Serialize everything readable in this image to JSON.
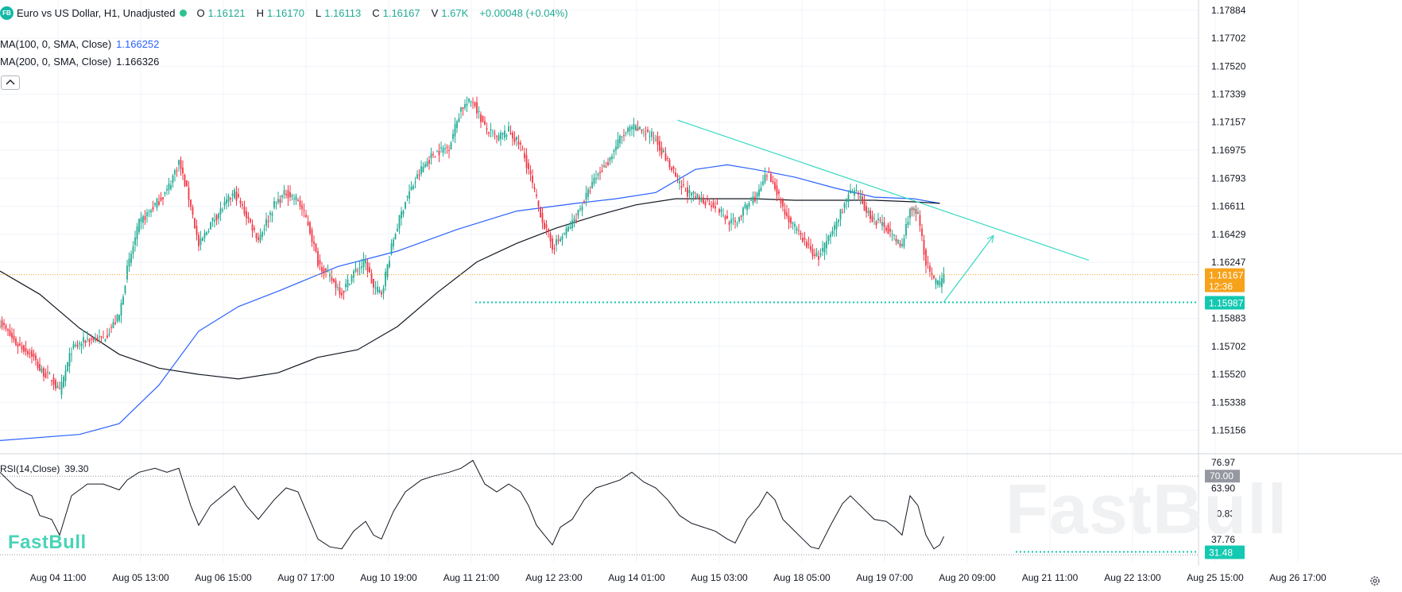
{
  "header": {
    "logo": "FB",
    "symbol_title": "Euro vs US Dollar, H1, Unadjusted",
    "ohlc": [
      {
        "key": "O",
        "value": "1.16121"
      },
      {
        "key": "H",
        "value": "1.16170"
      },
      {
        "key": "L",
        "value": "1.16113"
      },
      {
        "key": "C",
        "value": "1.16167"
      },
      {
        "key": "V",
        "value": "1.67K"
      }
    ],
    "change": "+0.00048 (+0.04%)"
  },
  "indicators": {
    "ma100_label": "MA(100, 0, SMA, Close)",
    "ma100_value": "1.166252",
    "ma200_label": "MA(200, 0, SMA, Close)",
    "ma200_value": "1.166326",
    "collapse_icon": "chevron-up-icon"
  },
  "rsi": {
    "label": "RSI(14,Close)",
    "value": "39.30"
  },
  "branding": {
    "small_logo": "FastBull",
    "watermark": "FastBull"
  },
  "colors": {
    "up": "#22ab94",
    "down": "#f23645",
    "ma100": "#2962ff",
    "ma200": "#131722",
    "trendline": "#36d9c4",
    "price_tag": "#f7a21b",
    "support_tag": "#13c9b1"
  },
  "chart_data": [
    {
      "type": "candlestick",
      "title": "Euro vs US Dollar, H1, Unadjusted",
      "x_tick_labels": [
        "Aug 04 11:00",
        "Aug 05 13:00",
        "Aug 06 15:00",
        "Aug 07 17:00",
        "Aug 10 19:00",
        "Aug 11 21:00",
        "Aug 12 23:00",
        "Aug 14 01:00",
        "Aug 15 03:00",
        "Aug 18 05:00",
        "Aug 19 07:00",
        "Aug 20 09:00",
        "Aug 21 11:00",
        "Aug 22 13:00",
        "Aug 25 15:00",
        "Aug 26 17:00"
      ],
      "y_tick_labels": [
        "1.17884",
        "1.17702",
        "1.17520",
        "1.17339",
        "1.17157",
        "1.16975",
        "1.16793",
        "1.16611",
        "1.16429",
        "1.16247",
        "1.15883",
        "1.15702",
        "1.15520",
        "1.15338",
        "1.15156"
      ],
      "ylim": [
        1.1502,
        1.1795
      ],
      "grid": true,
      "close_path": [
        [
          0,
          1.1586
        ],
        [
          8,
          1.1572
        ],
        [
          16,
          1.1565
        ],
        [
          20,
          1.1555
        ],
        [
          26,
          1.1549
        ],
        [
          30,
          1.154
        ],
        [
          36,
          1.1568
        ],
        [
          44,
          1.1575
        ],
        [
          52,
          1.1575
        ],
        [
          60,
          1.159
        ],
        [
          64,
          1.162
        ],
        [
          70,
          1.165
        ],
        [
          78,
          1.1662
        ],
        [
          84,
          1.1671
        ],
        [
          90,
          1.169
        ],
        [
          96,
          1.1662
        ],
        [
          100,
          1.1635
        ],
        [
          106,
          1.165
        ],
        [
          112,
          1.166
        ],
        [
          118,
          1.167
        ],
        [
          124,
          1.1655
        ],
        [
          130,
          1.164
        ],
        [
          138,
          1.1662
        ],
        [
          144,
          1.167
        ],
        [
          150,
          1.1665
        ],
        [
          155,
          1.165
        ],
        [
          160,
          1.1625
        ],
        [
          166,
          1.1615
        ],
        [
          172,
          1.1605
        ],
        [
          178,
          1.1618
        ],
        [
          184,
          1.1625
        ],
        [
          188,
          1.1608
        ],
        [
          192,
          1.1605
        ],
        [
          198,
          1.164
        ],
        [
          204,
          1.1665
        ],
        [
          212,
          1.1685
        ],
        [
          218,
          1.1695
        ],
        [
          226,
          1.17
        ],
        [
          232,
          1.1725
        ],
        [
          238,
          1.173
        ],
        [
          244,
          1.1712
        ],
        [
          250,
          1.1705
        ],
        [
          256,
          1.171
        ],
        [
          262,
          1.17
        ],
        [
          266,
          1.1685
        ],
        [
          270,
          1.1665
        ],
        [
          274,
          1.1648
        ],
        [
          278,
          1.1635
        ],
        [
          282,
          1.164
        ],
        [
          288,
          1.165
        ],
        [
          294,
          1.1665
        ],
        [
          300,
          1.168
        ],
        [
          306,
          1.169
        ],
        [
          312,
          1.1705
        ],
        [
          318,
          1.1712
        ],
        [
          324,
          1.171
        ],
        [
          330,
          1.1705
        ],
        [
          336,
          1.169
        ],
        [
          342,
          1.1675
        ],
        [
          348,
          1.1668
        ],
        [
          354,
          1.1665
        ],
        [
          360,
          1.1662
        ],
        [
          366,
          1.1652
        ],
        [
          370,
          1.165
        ],
        [
          376,
          1.1662
        ],
        [
          382,
          1.167
        ],
        [
          386,
          1.1682
        ],
        [
          390,
          1.1675
        ],
        [
          394,
          1.166
        ],
        [
          398,
          1.165
        ],
        [
          404,
          1.164
        ],
        [
          408,
          1.1632
        ],
        [
          412,
          1.1628
        ],
        [
          418,
          1.1642
        ],
        [
          424,
          1.166
        ],
        [
          428,
          1.167
        ],
        [
          432,
          1.1668
        ],
        [
          436,
          1.1658
        ],
        [
          440,
          1.1652
        ],
        [
          446,
          1.1648
        ],
        [
          450,
          1.164
        ],
        [
          454,
          1.1635
        ],
        [
          458,
          1.166
        ],
        [
          462,
          1.1655
        ],
        [
          466,
          1.1625
        ],
        [
          470,
          1.1612
        ],
        [
          473,
          1.161
        ],
        [
          475,
          1.1617
        ]
      ],
      "ma100": [
        [
          0,
          1.1509
        ],
        [
          40,
          1.1513
        ],
        [
          60,
          1.152
        ],
        [
          80,
          1.1545
        ],
        [
          100,
          1.158
        ],
        [
          120,
          1.1596
        ],
        [
          140,
          1.1606
        ],
        [
          170,
          1.1622
        ],
        [
          200,
          1.1632
        ],
        [
          230,
          1.1646
        ],
        [
          260,
          1.1658
        ],
        [
          290,
          1.1663
        ],
        [
          310,
          1.1666
        ],
        [
          330,
          1.167
        ],
        [
          350,
          1.1685
        ],
        [
          366,
          1.1688
        ],
        [
          380,
          1.1685
        ],
        [
          400,
          1.168
        ],
        [
          420,
          1.1673
        ],
        [
          440,
          1.1667
        ],
        [
          460,
          1.1666
        ],
        [
          473,
          1.1663
        ]
      ],
      "ma200": [
        [
          0,
          1.1619
        ],
        [
          20,
          1.1604
        ],
        [
          40,
          1.1582
        ],
        [
          60,
          1.1565
        ],
        [
          80,
          1.1556
        ],
        [
          100,
          1.1552
        ],
        [
          120,
          1.1549
        ],
        [
          140,
          1.1553
        ],
        [
          160,
          1.1563
        ],
        [
          180,
          1.1568
        ],
        [
          200,
          1.1583
        ],
        [
          220,
          1.1605
        ],
        [
          240,
          1.1625
        ],
        [
          260,
          1.1637
        ],
        [
          280,
          1.1647
        ],
        [
          300,
          1.1655
        ],
        [
          320,
          1.1662
        ],
        [
          340,
          1.1666
        ],
        [
          360,
          1.1666
        ],
        [
          380,
          1.1666
        ],
        [
          400,
          1.1665
        ],
        [
          420,
          1.1665
        ],
        [
          440,
          1.1665
        ],
        [
          460,
          1.1664
        ],
        [
          473,
          1.1663
        ]
      ],
      "trendline": [
        [
          341,
          1.1717
        ],
        [
          548,
          1.1626
        ]
      ],
      "projection_arrow": [
        [
          475,
          1.1599
        ],
        [
          500,
          1.1642
        ]
      ],
      "support_level": 1.15987,
      "current_price": 1.16167,
      "current_price_label": "1.16167",
      "countdown_label": "12:36",
      "support_label": "1.15987"
    },
    {
      "type": "line",
      "title": "RSI(14,Close)",
      "y_tick_labels": [
        "76.97",
        "63.90",
        "50.83",
        "37.76"
      ],
      "ylim": [
        26,
        81
      ],
      "levels": [
        70,
        30
      ],
      "level_70_label": "70.00",
      "marker_value": 31.48,
      "marker_label": "31.48",
      "path": [
        [
          0,
          72
        ],
        [
          8,
          64
        ],
        [
          16,
          60
        ],
        [
          20,
          50
        ],
        [
          26,
          48
        ],
        [
          30,
          40
        ],
        [
          36,
          60
        ],
        [
          44,
          66
        ],
        [
          52,
          66
        ],
        [
          60,
          63
        ],
        [
          64,
          68
        ],
        [
          70,
          72
        ],
        [
          78,
          74
        ],
        [
          84,
          72
        ],
        [
          90,
          74
        ],
        [
          96,
          55
        ],
        [
          100,
          45
        ],
        [
          106,
          55
        ],
        [
          112,
          60
        ],
        [
          118,
          65
        ],
        [
          124,
          55
        ],
        [
          130,
          48
        ],
        [
          138,
          58
        ],
        [
          144,
          64
        ],
        [
          150,
          62
        ],
        [
          155,
          50
        ],
        [
          160,
          38
        ],
        [
          166,
          34
        ],
        [
          172,
          33
        ],
        [
          178,
          42
        ],
        [
          184,
          47
        ],
        [
          188,
          40
        ],
        [
          192,
          38
        ],
        [
          198,
          52
        ],
        [
          204,
          62
        ],
        [
          212,
          68
        ],
        [
          218,
          70
        ],
        [
          226,
          72
        ],
        [
          232,
          74
        ],
        [
          238,
          78
        ],
        [
          244,
          66
        ],
        [
          250,
          62
        ],
        [
          256,
          66
        ],
        [
          262,
          62
        ],
        [
          266,
          55
        ],
        [
          270,
          45
        ],
        [
          274,
          40
        ],
        [
          278,
          35
        ],
        [
          282,
          44
        ],
        [
          288,
          48
        ],
        [
          294,
          58
        ],
        [
          300,
          64
        ],
        [
          306,
          66
        ],
        [
          312,
          68
        ],
        [
          318,
          72
        ],
        [
          324,
          67
        ],
        [
          330,
          64
        ],
        [
          336,
          58
        ],
        [
          342,
          50
        ],
        [
          348,
          46
        ],
        [
          354,
          44
        ],
        [
          360,
          42
        ],
        [
          366,
          38
        ],
        [
          370,
          36
        ],
        [
          376,
          48
        ],
        [
          382,
          55
        ],
        [
          386,
          62
        ],
        [
          390,
          58
        ],
        [
          394,
          48
        ],
        [
          398,
          44
        ],
        [
          404,
          38
        ],
        [
          408,
          34
        ],
        [
          412,
          33
        ],
        [
          418,
          45
        ],
        [
          424,
          56
        ],
        [
          428,
          60
        ],
        [
          432,
          56
        ],
        [
          436,
          52
        ],
        [
          440,
          48
        ],
        [
          446,
          47
        ],
        [
          450,
          44
        ],
        [
          454,
          40
        ],
        [
          458,
          60
        ],
        [
          462,
          55
        ],
        [
          466,
          40
        ],
        [
          470,
          33
        ],
        [
          473,
          35
        ],
        [
          475,
          39.3
        ]
      ]
    }
  ]
}
